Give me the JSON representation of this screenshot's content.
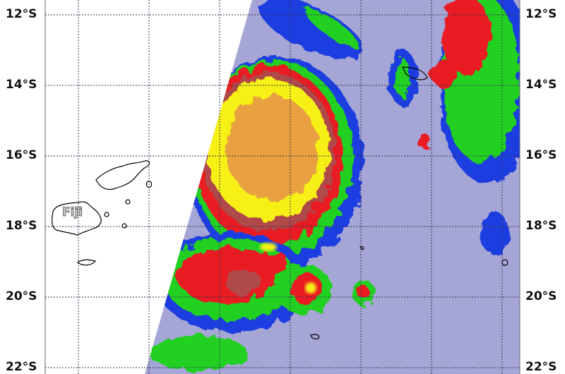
{
  "map": {
    "latitude_labels": [
      "12°S",
      "14°S",
      "16°S",
      "18°S",
      "20°S",
      "22°S"
    ],
    "place_label": "Fiji",
    "colors": {
      "coldest_cloud_tops": "#f6f016",
      "very_cold": "#e8a040",
      "cold": "#e81c24",
      "moderate": "#20d020",
      "warm": "#1a3ce0",
      "warmest": "#a8a8d8",
      "grid": "#333355"
    }
  }
}
